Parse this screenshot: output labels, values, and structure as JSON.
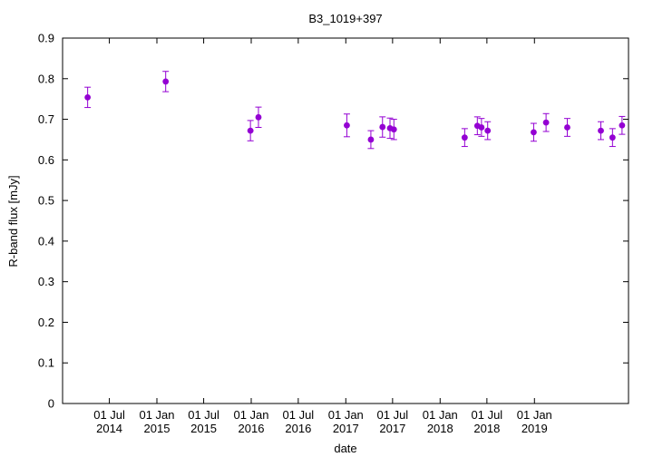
{
  "chart_data": {
    "type": "scatter",
    "title": "B3_1019+397",
    "xlabel": "date",
    "ylabel": "R-band flux [mJy]",
    "ylim": [
      0,
      0.9
    ],
    "xlim": [
      "2014-01-01",
      "2019-12-31"
    ],
    "yticks": [
      "0",
      "0.1",
      "0.2",
      "0.3",
      "0.4",
      "0.5",
      "0.6",
      "0.7",
      "0.8",
      "0.9"
    ],
    "xticks": [
      {
        "date": "2014-07-01",
        "line1": "01 Jul",
        "line2": "2014"
      },
      {
        "date": "2015-01-01",
        "line1": "01 Jan",
        "line2": "2015"
      },
      {
        "date": "2015-07-01",
        "line1": "01 Jul",
        "line2": "2015"
      },
      {
        "date": "2016-01-01",
        "line1": "01 Jan",
        "line2": "2016"
      },
      {
        "date": "2016-07-01",
        "line1": "01 Jul",
        "line2": "2016"
      },
      {
        "date": "2017-01-01",
        "line1": "01 Jan",
        "line2": "2017"
      },
      {
        "date": "2017-07-01",
        "line1": "01 Jul",
        "line2": "2017"
      },
      {
        "date": "2018-01-01",
        "line1": "01 Jan",
        "line2": "2018"
      },
      {
        "date": "2018-07-01",
        "line1": "01 Jul",
        "line2": "2018"
      },
      {
        "date": "2019-01-01",
        "line1": "01 Jan",
        "line2": "2019"
      }
    ],
    "color": "#9400d3",
    "grid": false,
    "points": [
      {
        "x": "2014-04-08",
        "y": 0.754,
        "err": 0.025
      },
      {
        "x": "2015-02-04",
        "y": 0.793,
        "err": 0.025
      },
      {
        "x": "2015-12-29",
        "y": 0.672,
        "err": 0.025
      },
      {
        "x": "2016-01-29",
        "y": 0.705,
        "err": 0.025
      },
      {
        "x": "2017-01-05",
        "y": 0.685,
        "err": 0.028
      },
      {
        "x": "2017-04-08",
        "y": 0.65,
        "err": 0.022
      },
      {
        "x": "2017-05-23",
        "y": 0.681,
        "err": 0.025
      },
      {
        "x": "2017-06-21",
        "y": 0.678,
        "err": 0.025
      },
      {
        "x": "2017-07-06",
        "y": 0.675,
        "err": 0.025
      },
      {
        "x": "2018-04-06",
        "y": 0.655,
        "err": 0.022
      },
      {
        "x": "2018-05-25",
        "y": 0.684,
        "err": 0.022
      },
      {
        "x": "2018-06-10",
        "y": 0.68,
        "err": 0.022
      },
      {
        "x": "2018-07-04",
        "y": 0.672,
        "err": 0.022
      },
      {
        "x": "2018-12-29",
        "y": 0.668,
        "err": 0.022
      },
      {
        "x": "2019-02-15",
        "y": 0.692,
        "err": 0.022
      },
      {
        "x": "2019-05-08",
        "y": 0.68,
        "err": 0.022
      },
      {
        "x": "2019-09-15",
        "y": 0.672,
        "err": 0.022
      },
      {
        "x": "2019-10-30",
        "y": 0.655,
        "err": 0.022
      },
      {
        "x": "2019-12-06",
        "y": 0.685,
        "err": 0.022
      }
    ]
  }
}
